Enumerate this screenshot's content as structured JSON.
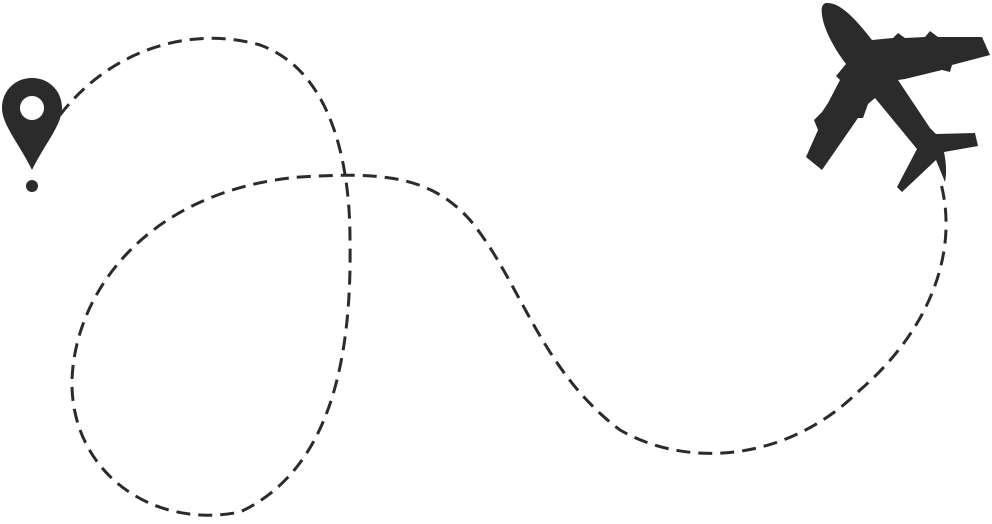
{
  "illustration": {
    "icons": {
      "start": "map-pin-icon",
      "end": "airplane-icon"
    },
    "route_style": "dashed",
    "colors": {
      "ink": "#2b2b2b",
      "background": "#ffffff"
    }
  }
}
